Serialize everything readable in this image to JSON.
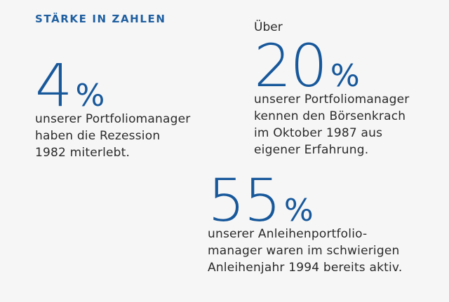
{
  "heading": "STÄRKE IN ZAHLEN",
  "stats": [
    {
      "prefix": "",
      "value": "4",
      "unit": "%",
      "lines": [
        "unserer Portfoliomanager",
        "haben die Rezession",
        "1982 miterlebt."
      ]
    },
    {
      "prefix": "Über",
      "value": "20",
      "unit": "%",
      "lines": [
        "unserer Portfoliomanager",
        "kennen den Börsenkrach",
        "im Oktober 1987 aus",
        "eigener Erfahrung."
      ]
    },
    {
      "prefix": "",
      "value": "55",
      "unit": "%",
      "lines": [
        "unserer Anleihenportfolio-",
        "manager waren im schwierigen",
        "Anleihenjahr 1994 bereits aktiv."
      ]
    }
  ],
  "colors": {
    "accent": "#17589b",
    "heading": "#1f5fa0",
    "text": "#2a2a2a",
    "background": "#f6f6f6"
  }
}
